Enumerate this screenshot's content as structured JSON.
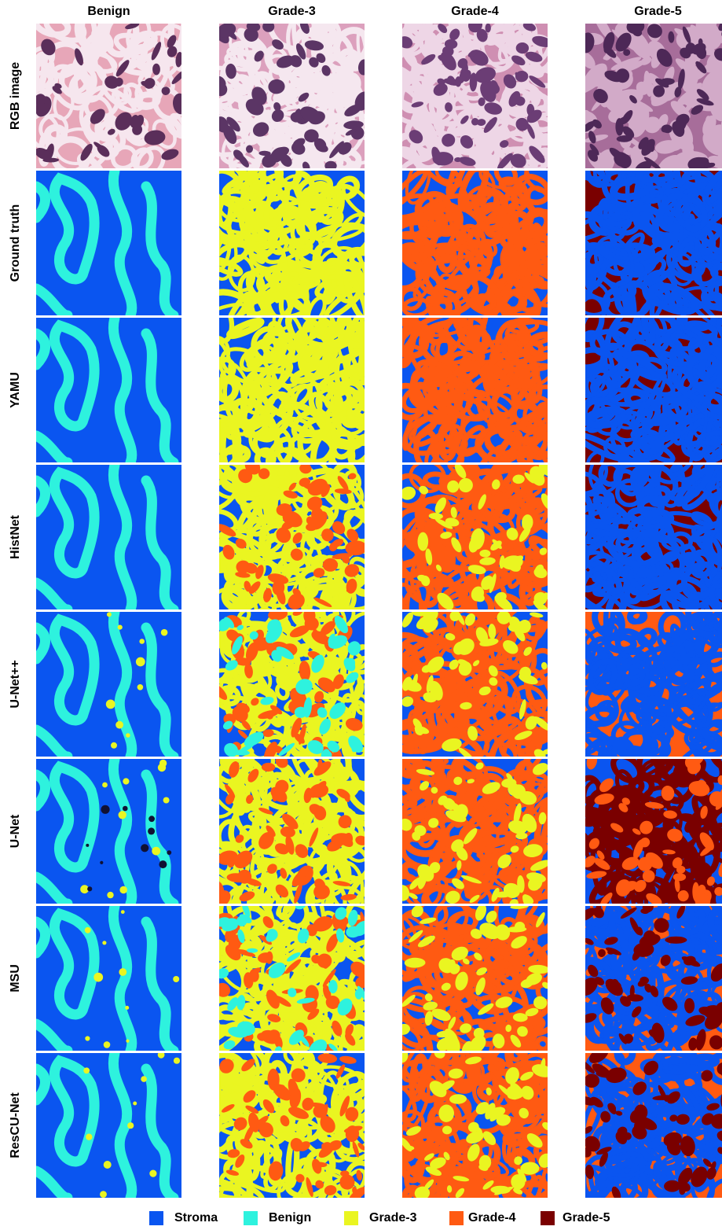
{
  "columns": [
    "Benign",
    "Grade-3",
    "Grade-4",
    "Grade-5"
  ],
  "rows": [
    "RGB image",
    "Ground truth",
    "YAMU",
    "HistNet",
    "U-Net++",
    "U-Net",
    "MSU",
    "ResCU-Net"
  ],
  "legend": [
    {
      "label": "Stroma",
      "color": "#0a55f0"
    },
    {
      "label": "Benign",
      "color": "#2ef2de"
    },
    {
      "label": "Grade-3",
      "color": "#eaf521"
    },
    {
      "label": "Grade-4",
      "color": "#ff5a12"
    },
    {
      "label": "Grade-5",
      "color": "#7a0000"
    }
  ],
  "tile_mix": {
    "Ground truth": [
      {
        "bg": "#0a55f0",
        "fg": [
          "#2ef2de"
        ]
      },
      {
        "bg": "#0a55f0",
        "fg": [
          "#eaf521"
        ]
      },
      {
        "bg": "#0a55f0",
        "fg": [
          "#ff5a12"
        ]
      },
      {
        "bg": "#7a0000",
        "fg": [
          "#0a55f0"
        ]
      }
    ],
    "YAMU": [
      {
        "bg": "#0a55f0",
        "fg": [
          "#2ef2de"
        ]
      },
      {
        "bg": "#0a55f0",
        "fg": [
          "#eaf521"
        ]
      },
      {
        "bg": "#0a55f0",
        "fg": [
          "#ff5a12"
        ]
      },
      {
        "bg": "#7a0000",
        "fg": [
          "#0a55f0"
        ]
      }
    ],
    "HistNet": [
      {
        "bg": "#0a55f0",
        "fg": [
          "#2ef2de"
        ]
      },
      {
        "bg": "#0a55f0",
        "fg": [
          "#eaf521",
          "#ff5a12"
        ]
      },
      {
        "bg": "#0a55f0",
        "fg": [
          "#ff5a12",
          "#eaf521"
        ]
      },
      {
        "bg": "#7a0000",
        "fg": [
          "#0a55f0"
        ]
      }
    ],
    "U-Net++": [
      {
        "bg": "#0a55f0",
        "fg": [
          "#2ef2de",
          "#eaf521"
        ]
      },
      {
        "bg": "#0a55f0",
        "fg": [
          "#eaf521",
          "#ff5a12",
          "#2ef2de"
        ]
      },
      {
        "bg": "#0a55f0",
        "fg": [
          "#ff5a12",
          "#eaf521"
        ]
      },
      {
        "bg": "#ff5a12",
        "fg": [
          "#0a55f0"
        ]
      }
    ],
    "U-Net": [
      {
        "bg": "#0a55f0",
        "fg": [
          "#2ef2de",
          "#eaf521",
          "#111133"
        ]
      },
      {
        "bg": "#0a55f0",
        "fg": [
          "#eaf521",
          "#ff5a12"
        ]
      },
      {
        "bg": "#0a55f0",
        "fg": [
          "#ff5a12",
          "#eaf521"
        ]
      },
      {
        "bg": "#0a55f0",
        "fg": [
          "#7a0000",
          "#ff5a12"
        ]
      }
    ],
    "MSU": [
      {
        "bg": "#0a55f0",
        "fg": [
          "#2ef2de",
          "#eaf521"
        ]
      },
      {
        "bg": "#0a55f0",
        "fg": [
          "#eaf521",
          "#ff5a12",
          "#2ef2de"
        ]
      },
      {
        "bg": "#0a55f0",
        "fg": [
          "#ff5a12",
          "#eaf521"
        ]
      },
      {
        "bg": "#ff5a12",
        "fg": [
          "#0a55f0",
          "#7a0000"
        ]
      }
    ],
    "ResCU-Net": [
      {
        "bg": "#0a55f0",
        "fg": [
          "#2ef2de",
          "#eaf521"
        ]
      },
      {
        "bg": "#0a55f0",
        "fg": [
          "#eaf521",
          "#ff5a12"
        ]
      },
      {
        "bg": "#0a55f0",
        "fg": [
          "#ff5a12",
          "#eaf521"
        ]
      },
      {
        "bg": "#ff5a12",
        "fg": [
          "#0a55f0",
          "#7a0000"
        ]
      }
    ]
  },
  "rgb_tint": [
    {
      "bg": "#e7a6b8",
      "fg": [
        "#f6e6ee",
        "#5a2e5a"
      ]
    },
    {
      "bg": "#dca0bd",
      "fg": [
        "#f5e7ef",
        "#5b3565"
      ]
    },
    {
      "bg": "#cf8fb2",
      "fg": [
        "#eed6e6",
        "#6b3d75"
      ]
    },
    {
      "bg": "#a76d9a",
      "fg": [
        "#d2aac8",
        "#4d2857"
      ]
    }
  ]
}
